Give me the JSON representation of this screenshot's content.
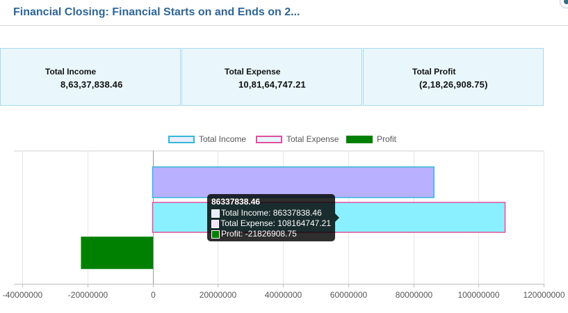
{
  "header": {
    "title": "Financial Closing: Financial Starts on and Ends on 2..."
  },
  "summary": {
    "cards": [
      {
        "label": "Total Income",
        "value": "8,63,37,838.46"
      },
      {
        "label": "Total Expense",
        "value": "10,81,64,747.21"
      },
      {
        "label": "Total Profit",
        "value": "(2,18,26,908.75)"
      }
    ]
  },
  "colors": {
    "income_fill": "#b9b0ff",
    "income_border": "#35b6d8",
    "expense_fill": "#8af0ff",
    "expense_border": "#e0509d",
    "profit_fill": "#008000",
    "title": "#2f6597"
  },
  "chart_data": {
    "type": "bar",
    "orientation": "horizontal",
    "series": [
      {
        "name": "Total Income",
        "value": 86337838.46
      },
      {
        "name": "Total Expense",
        "value": 108164747.21
      },
      {
        "name": "Profit",
        "value": -21826908.75
      }
    ],
    "xlim": [
      -40000000,
      120000000
    ],
    "xticks": [
      "-40000000",
      "-20000000",
      "0",
      "20000000",
      "40000000",
      "60000000",
      "80000000",
      "100000000",
      "120000000"
    ],
    "grid": true,
    "legend": "top-center"
  },
  "tooltip": {
    "title": "86337838.46",
    "rows": [
      "Total Income: 86337838.46",
      "Total Expense: 108164747.21",
      "Profit: -21826908.75"
    ]
  }
}
